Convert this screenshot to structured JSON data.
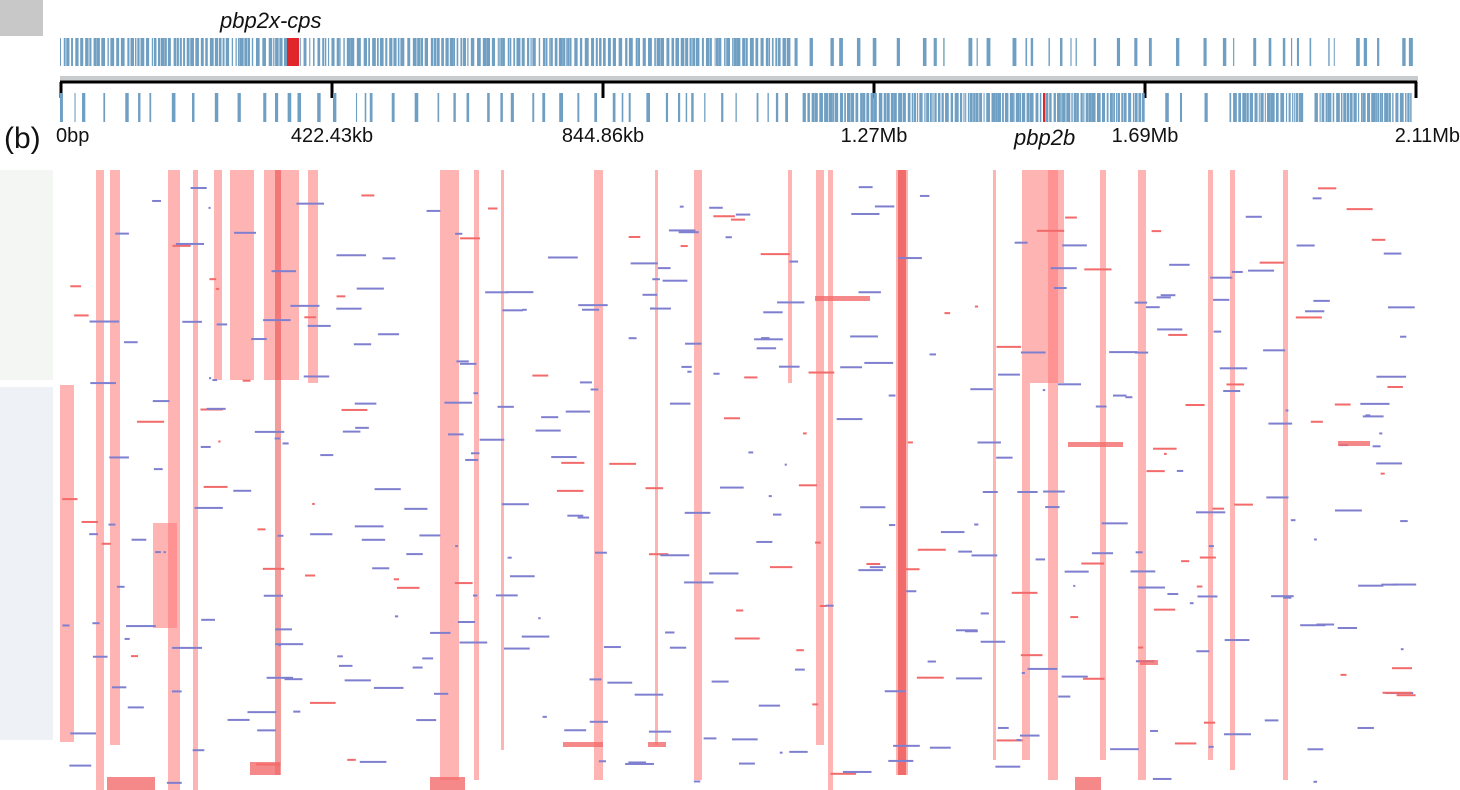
{
  "panel_label": "(b)",
  "genes": {
    "top": "pbp2x-cps",
    "bottom": "pbp2b"
  },
  "axis_labels": [
    "0bp",
    "422.43kb",
    "844.86kb",
    "1.27Mb",
    "1.69Mb",
    "2.11Mb"
  ]
}
